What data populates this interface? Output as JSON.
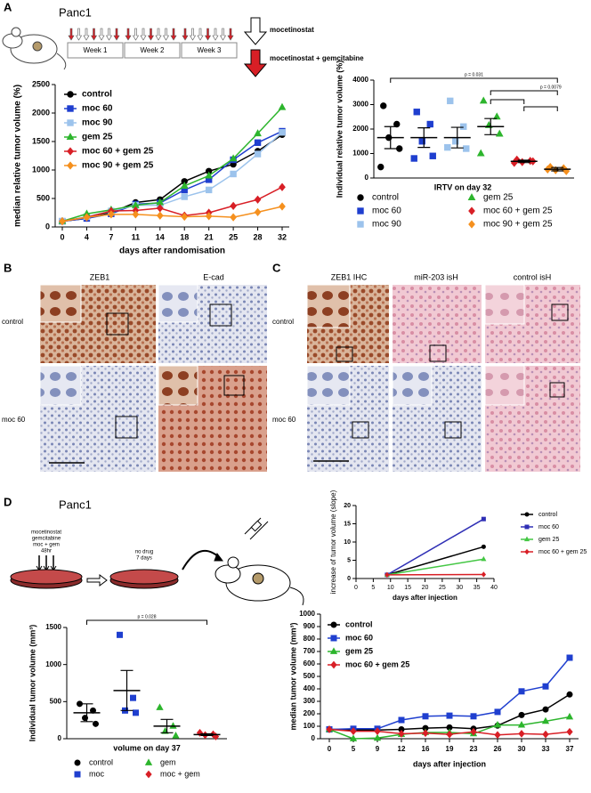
{
  "labels": {
    "panel_a": "A",
    "panel_b": "B",
    "panel_c": "C",
    "panel_d": "D",
    "cell_line_a": "Panc1",
    "cell_line_d": "Panc1",
    "weeks": [
      "Week 1",
      "Week 2",
      "Week 3"
    ],
    "arrow_moc": "mocetinostat",
    "arrow_moc_gem": "mocetinostat + gemcitabine",
    "b_columns": [
      "ZEB1",
      "E-cad"
    ],
    "b_rows": [
      "control",
      "moc 60"
    ],
    "c_columns": [
      "ZEB1 IHC",
      "miR-203 isH",
      "control  isH"
    ],
    "c_rows": [
      "control",
      "moc 60"
    ],
    "d_treatment": [
      "mocetinostat",
      "gemcitabine",
      "moc + gem",
      "48hr"
    ],
    "d_nodrug": [
      "no drug",
      "7 days"
    ]
  },
  "chart_data": [
    {
      "type": "line",
      "ylabel": "median relative tumor volume (%)",
      "xlabel": "days after randomisation",
      "categories": [
        "0",
        "4",
        "7",
        "11",
        "14",
        "18",
        "21",
        "25",
        "28",
        "32"
      ],
      "ylim": [
        0,
        2500
      ],
      "yticks": [
        0,
        500,
        1000,
        1500,
        2000,
        2500
      ],
      "series": [
        {
          "name": "control",
          "color": "#000000",
          "marker": "circle",
          "values": [
            100,
            150,
            250,
            430,
            480,
            800,
            980,
            1100,
            1330,
            1620
          ]
        },
        {
          "name": "moc 60",
          "color": "#1f3fcf",
          "marker": "square",
          "values": [
            100,
            150,
            230,
            400,
            420,
            650,
            830,
            1180,
            1480,
            1680
          ]
        },
        {
          "name": "moc 90",
          "color": "#9cc3ec",
          "marker": "square",
          "values": [
            100,
            180,
            280,
            380,
            380,
            530,
            650,
            930,
            1280,
            1660
          ]
        },
        {
          "name": "gem 25",
          "color": "#2db52d",
          "marker": "triangle",
          "values": [
            100,
            230,
            300,
            380,
            430,
            720,
            900,
            1200,
            1640,
            2100
          ]
        },
        {
          "name": "moc 60 + gem 25",
          "color": "#d81f26",
          "marker": "diamond",
          "values": [
            100,
            170,
            280,
            290,
            330,
            200,
            250,
            370,
            480,
            700
          ]
        },
        {
          "name": "moc 90 + gem 25",
          "color": "#f5901e",
          "marker": "diamond",
          "values": [
            100,
            170,
            220,
            220,
            200,
            180,
            190,
            170,
            260,
            360
          ]
        }
      ]
    },
    {
      "type": "dotplot",
      "ylabel": "Individual relative tumor volume (%)",
      "xlabel": "IRTV on day 32",
      "ylim": [
        0,
        4000
      ],
      "yticks": [
        0,
        1000,
        2000,
        3000,
        4000
      ],
      "annotations": [
        "p = 0.031",
        "p = 0.0079"
      ],
      "series": [
        {
          "name": "control",
          "color": "#000000",
          "marker": "circle",
          "values": [
            2950,
            2200,
            1650,
            1200,
            450
          ],
          "mean": 1650,
          "sem": 450
        },
        {
          "name": "moc 60",
          "color": "#1f3fcf",
          "marker": "square",
          "values": [
            2700,
            2200,
            1500,
            900,
            800
          ],
          "mean": 1650,
          "sem": 400
        },
        {
          "name": "moc 90",
          "color": "#9cc3ec",
          "marker": "square",
          "values": [
            3150,
            2100,
            1500,
            1200,
            1250
          ],
          "mean": 1650,
          "sem": 420
        },
        {
          "name": "gem 25",
          "color": "#2db52d",
          "marker": "triangle",
          "values": [
            3150,
            2500,
            2150,
            1800,
            1000
          ],
          "mean": 2100,
          "sem": 330
        },
        {
          "name": "moc 60 + gem 25",
          "color": "#d81f26",
          "marker": "diamond",
          "values": [
            750,
            700,
            650,
            680,
            620
          ],
          "mean": 680,
          "sem": 50
        },
        {
          "name": "moc 90 + gem 25",
          "color": "#f5901e",
          "marker": "diamond",
          "values": [
            450,
            400,
            320,
            280,
            350
          ],
          "mean": 360,
          "sem": 70
        }
      ]
    },
    {
      "type": "line",
      "ylabel": "increase of tumor volume (slope)",
      "xlabel": "days after injection",
      "x": [
        9,
        37
      ],
      "xlim": [
        0,
        40
      ],
      "xticks": [
        0,
        5,
        10,
        15,
        20,
        25,
        30,
        35,
        40
      ],
      "ylim": [
        0,
        20
      ],
      "yticks": [
        0,
        5,
        10,
        15,
        20
      ],
      "series": [
        {
          "name": "control",
          "color": "#000000",
          "marker": "circle",
          "values": [
            1,
            8.7
          ]
        },
        {
          "name": "moc 60",
          "color": "#2f2fb5",
          "marker": "square",
          "values": [
            1,
            16.3
          ]
        },
        {
          "name": "gem 25",
          "color": "#44c744",
          "marker": "triangle",
          "values": [
            1,
            5.3
          ]
        },
        {
          "name": "moc 60 + gem 25",
          "color": "#d81f26",
          "marker": "diamond",
          "values": [
            1,
            1.1
          ]
        }
      ]
    },
    {
      "type": "dotplot",
      "ylabel": "Individual tumor volume (mm³)",
      "xlabel": "volume on day 37",
      "ylim": [
        0,
        1500
      ],
      "yticks": [
        0,
        500,
        1000,
        1500
      ],
      "annotations": [
        "p = 0.028"
      ],
      "series": [
        {
          "name": "control",
          "color": "#000000",
          "marker": "circle",
          "values": [
            470,
            380,
            280,
            200
          ],
          "mean": 350,
          "sem": 120
        },
        {
          "name": "moc",
          "color": "#1f3fcf",
          "marker": "square",
          "values": [
            1400,
            550,
            380,
            350
          ],
          "mean": 650,
          "sem": 270
        },
        {
          "name": "gem",
          "color": "#2db52d",
          "marker": "triangle",
          "values": [
            420,
            170,
            100,
            40
          ],
          "mean": 170,
          "sem": 90
        },
        {
          "name": "moc + gem",
          "color": "#d81f26",
          "marker": "diamond",
          "values": [
            80,
            60,
            50,
            30
          ],
          "mean": 55,
          "sem": 12
        }
      ]
    },
    {
      "type": "line",
      "ylabel": "median tumor volume (mm³)",
      "xlabel": "days after injection",
      "categories": [
        "0",
        "5",
        "9",
        "12",
        "16",
        "19",
        "23",
        "26",
        "30",
        "33",
        "37"
      ],
      "ylim": [
        0,
        1000
      ],
      "yticks": [
        0,
        100,
        200,
        300,
        400,
        500,
        600,
        700,
        800,
        900,
        1000
      ],
      "series": [
        {
          "name": "control",
          "color": "#000000",
          "marker": "circle",
          "values": [
            75,
            70,
            70,
            75,
            85,
            90,
            80,
            105,
            190,
            235,
            355
          ]
        },
        {
          "name": "moc 60",
          "color": "#1f3fcf",
          "marker": "square",
          "values": [
            75,
            80,
            80,
            150,
            180,
            185,
            180,
            215,
            380,
            420,
            650
          ]
        },
        {
          "name": "gem 25",
          "color": "#2db52d",
          "marker": "triangle",
          "values": [
            75,
            0,
            5,
            35,
            50,
            50,
            40,
            110,
            110,
            140,
            175
          ]
        },
        {
          "name": "moc 60 + gem 25",
          "color": "#d81f26",
          "marker": "diamond",
          "values": [
            75,
            60,
            60,
            40,
            45,
            35,
            55,
            30,
            40,
            35,
            55
          ]
        }
      ]
    }
  ]
}
